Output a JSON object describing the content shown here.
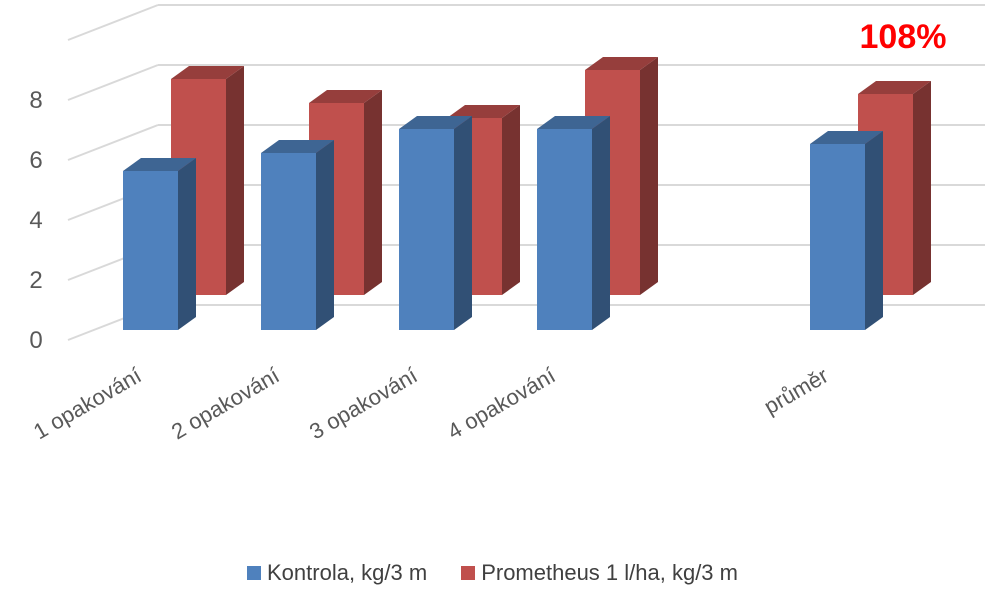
{
  "chart_data": {
    "type": "bar",
    "categories": [
      "1 opakování",
      "2 opakování",
      "3 opakování",
      "4 opakování",
      "",
      "průměr"
    ],
    "series": [
      {
        "name": "Kontrola, kg/3 m",
        "values": [
          5.3,
          5.9,
          6.7,
          6.7,
          null,
          6.2
        ],
        "color": "#4f81bd"
      },
      {
        "name": "Prometheus 1 l/ha, kg/3 m",
        "values": [
          7.2,
          6.4,
          5.9,
          7.5,
          null,
          6.7
        ],
        "color": "#c0504d"
      }
    ],
    "yticks": [
      0,
      2,
      4,
      6,
      8
    ],
    "ylim": [
      0,
      9
    ],
    "grid": true,
    "legend_position": "bottom",
    "annotation": {
      "text": "108%",
      "category": "průměr",
      "series": 1,
      "color": "#ff0000"
    }
  }
}
